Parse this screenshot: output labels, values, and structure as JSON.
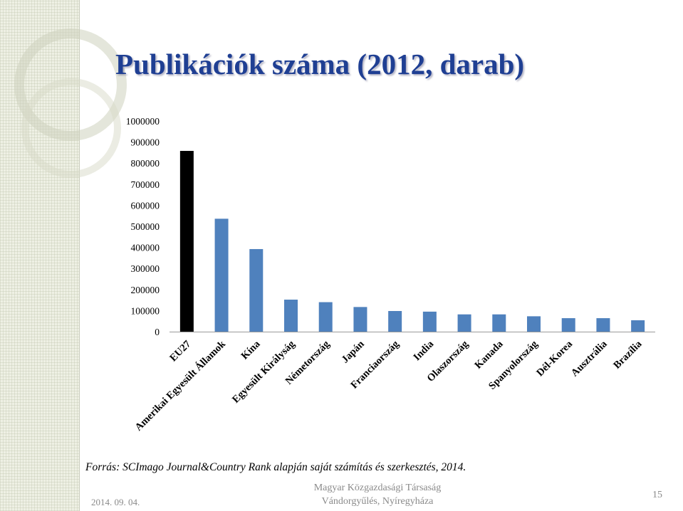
{
  "slide": {
    "title": "Publikációk száma (2012, darab)",
    "source": "Forrás: SCImago Journal&Country Rank alapján saját számítás és szerkesztés, 2014.",
    "date": "2014. 09. 04.",
    "org_line1": "Magyar Közgazdasági Társaság",
    "org_line2": "Vándorgyűlés, Nyíregyháza",
    "page_number": "15"
  },
  "chart_data": {
    "type": "bar",
    "title": "",
    "xlabel": "",
    "ylabel": "",
    "ylim": [
      0,
      1000000
    ],
    "yticks": [
      "0",
      "100000",
      "200000",
      "300000",
      "400000",
      "500000",
      "600000",
      "700000",
      "800000",
      "900000",
      "1000000"
    ],
    "grid": false,
    "categories": [
      "EU27",
      "Amerikai Egyesült Államok",
      "Kína",
      "Egyesült Királyság",
      "Németország",
      "Japán",
      "Franciaország",
      "India",
      "Olaszország",
      "Kanada",
      "Spanyolország",
      "Dél-Korea",
      "Ausztrália",
      "Brazília"
    ],
    "values": [
      858000,
      536000,
      392000,
      152000,
      140000,
      117000,
      98000,
      95000,
      82000,
      82000,
      73000,
      64000,
      64000,
      54000
    ],
    "colors": [
      "#000000",
      "#4f81bd",
      "#4f81bd",
      "#4f81bd",
      "#4f81bd",
      "#4f81bd",
      "#4f81bd",
      "#4f81bd",
      "#4f81bd",
      "#4f81bd",
      "#4f81bd",
      "#4f81bd",
      "#4f81bd",
      "#4f81bd"
    ]
  }
}
